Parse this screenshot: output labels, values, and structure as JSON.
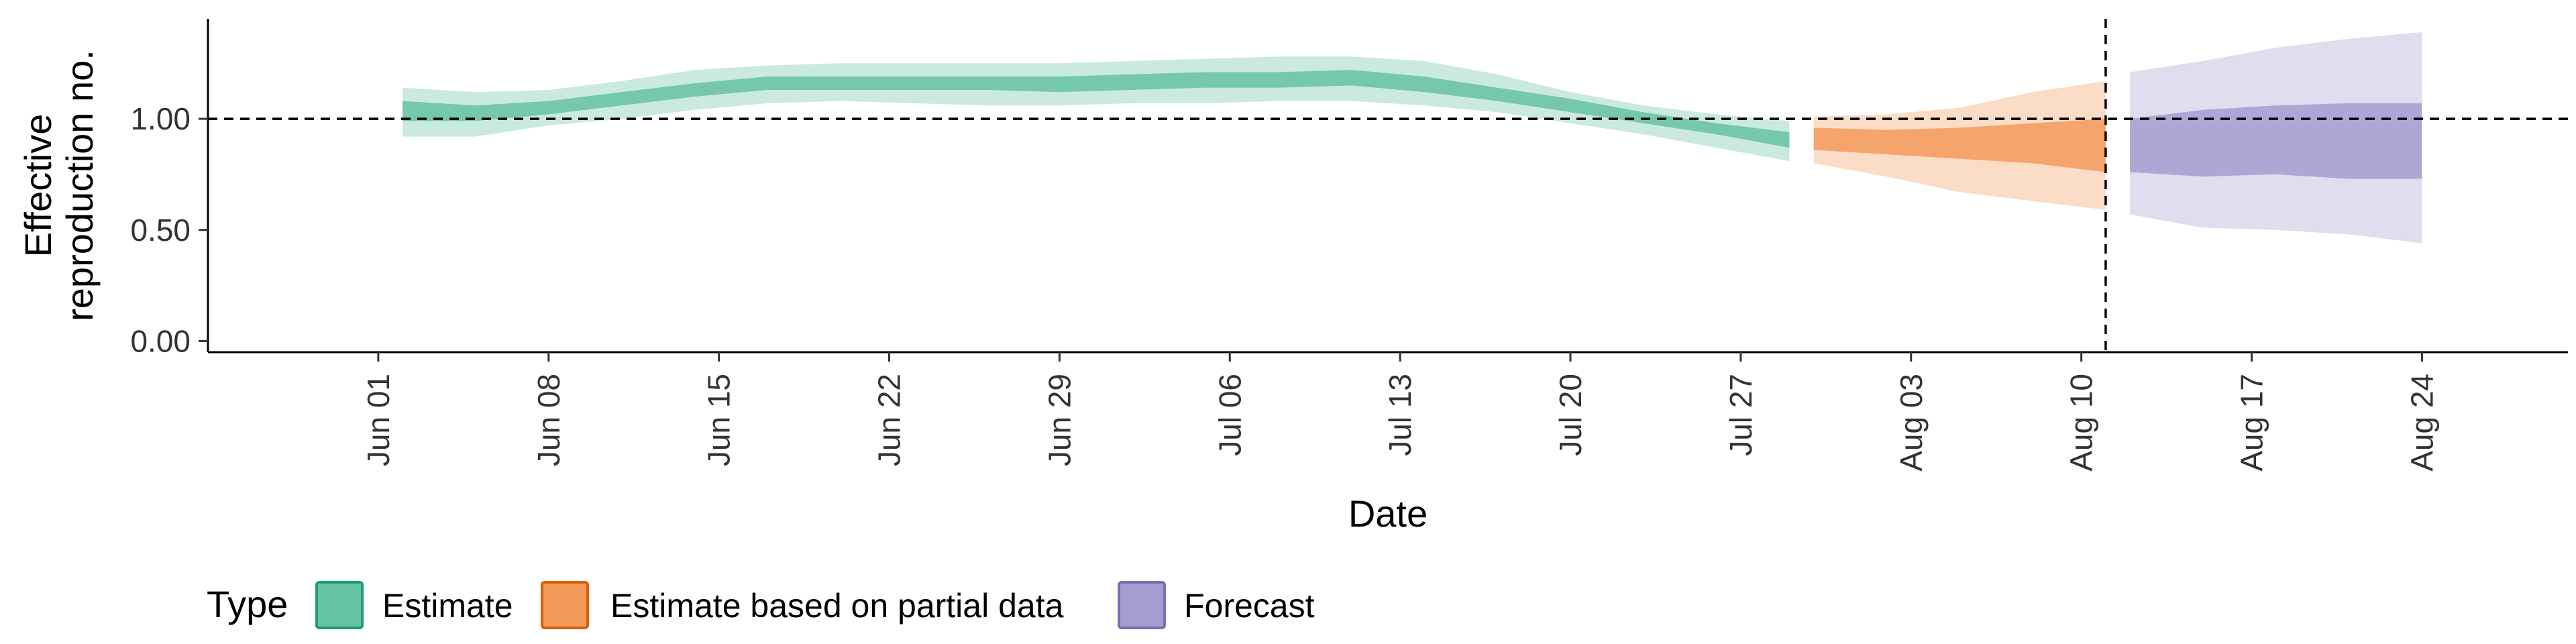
{
  "chart_data": {
    "type": "area",
    "title": "",
    "xlabel": "Date",
    "ylabel_lines": [
      "Effective",
      "reproduction no."
    ],
    "ylim": [
      -0.05,
      1.45
    ],
    "xlim": [
      "2020-05-25",
      "2020-08-30"
    ],
    "y_ticks": [
      {
        "value": 0.0,
        "label": "0.00"
      },
      {
        "value": 0.5,
        "label": "0.50"
      },
      {
        "value": 1.0,
        "label": "1.00"
      }
    ],
    "x_ticks": [
      {
        "value": "2020-06-01",
        "label": "Jun 01"
      },
      {
        "value": "2020-06-08",
        "label": "Jun 08"
      },
      {
        "value": "2020-06-15",
        "label": "Jun 15"
      },
      {
        "value": "2020-06-22",
        "label": "Jun 22"
      },
      {
        "value": "2020-06-29",
        "label": "Jun 29"
      },
      {
        "value": "2020-07-06",
        "label": "Jul 06"
      },
      {
        "value": "2020-07-13",
        "label": "Jul 13"
      },
      {
        "value": "2020-07-20",
        "label": "Jul 20"
      },
      {
        "value": "2020-07-27",
        "label": "Jul 27"
      },
      {
        "value": "2020-08-03",
        "label": "Aug 03"
      },
      {
        "value": "2020-08-10",
        "label": "Aug 10"
      },
      {
        "value": "2020-08-17",
        "label": "Aug 17"
      },
      {
        "value": "2020-08-24",
        "label": "Aug 24"
      }
    ],
    "hline": 1.0,
    "vline": "2020-08-11",
    "grid": false,
    "legend_position": "bottom-left",
    "legend_title": "Type",
    "series": [
      {
        "name": "Estimate",
        "fill": "#66c2a5",
        "border": "#1b9e77",
        "x": [
          "2020-06-02",
          "2020-06-05",
          "2020-06-08",
          "2020-06-11",
          "2020-06-14",
          "2020-06-17",
          "2020-06-20",
          "2020-06-23",
          "2020-06-26",
          "2020-06-29",
          "2020-07-02",
          "2020-07-05",
          "2020-07-08",
          "2020-07-11",
          "2020-07-14",
          "2020-07-17",
          "2020-07-20",
          "2020-07-23",
          "2020-07-26",
          "2020-07-29"
        ],
        "lower90": [
          0.92,
          0.92,
          0.97,
          1.0,
          1.04,
          1.07,
          1.08,
          1.07,
          1.06,
          1.06,
          1.07,
          1.07,
          1.08,
          1.08,
          1.06,
          1.03,
          0.98,
          0.93,
          0.87,
          0.81
        ],
        "upper90": [
          1.14,
          1.12,
          1.13,
          1.17,
          1.22,
          1.24,
          1.25,
          1.25,
          1.25,
          1.25,
          1.26,
          1.27,
          1.28,
          1.28,
          1.26,
          1.2,
          1.12,
          1.06,
          1.02,
          0.99
        ],
        "lower50": [
          0.99,
          0.99,
          1.02,
          1.06,
          1.1,
          1.13,
          1.13,
          1.13,
          1.13,
          1.12,
          1.13,
          1.14,
          1.14,
          1.15,
          1.12,
          1.08,
          1.03,
          0.98,
          0.93,
          0.87
        ],
        "upper50": [
          1.08,
          1.06,
          1.08,
          1.12,
          1.16,
          1.19,
          1.19,
          1.19,
          1.19,
          1.19,
          1.2,
          1.21,
          1.21,
          1.22,
          1.19,
          1.14,
          1.09,
          1.03,
          0.98,
          0.94
        ]
      },
      {
        "name": "Estimate based on partial data",
        "fill": "#f39b5b",
        "border": "#d95f02",
        "x": [
          "2020-07-30",
          "2020-08-02",
          "2020-08-05",
          "2020-08-08",
          "2020-08-11"
        ],
        "lower90": [
          0.8,
          0.74,
          0.67,
          0.63,
          0.59
        ],
        "upper90": [
          1.01,
          1.02,
          1.05,
          1.12,
          1.17
        ],
        "lower50": [
          0.86,
          0.84,
          0.82,
          0.8,
          0.76
        ],
        "upper50": [
          0.96,
          0.95,
          0.96,
          0.98,
          1.0
        ]
      },
      {
        "name": "Forecast",
        "fill": "#a59dd0",
        "border": "#7570b3",
        "x": [
          "2020-08-12",
          "2020-08-15",
          "2020-08-18",
          "2020-08-21",
          "2020-08-24"
        ],
        "lower90": [
          0.57,
          0.51,
          0.5,
          0.48,
          0.44
        ],
        "upper90": [
          1.21,
          1.26,
          1.32,
          1.36,
          1.39
        ],
        "lower50": [
          0.76,
          0.74,
          0.75,
          0.73,
          0.73
        ],
        "upper50": [
          1.0,
          1.04,
          1.06,
          1.07,
          1.07
        ]
      }
    ]
  }
}
